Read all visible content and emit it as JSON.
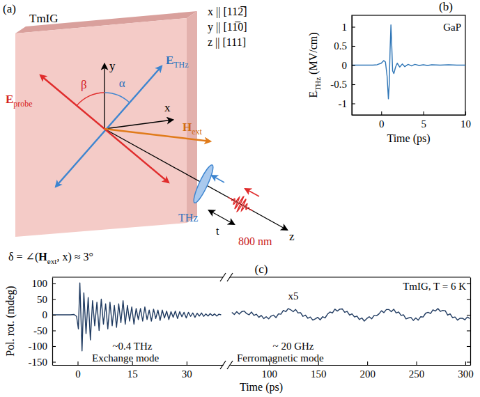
{
  "diagram": {
    "panel_label": "(a)",
    "sample": "TmIG",
    "orientations": [
      "x || [112̅]",
      "y || [11̅0]",
      "z || [111]"
    ],
    "axis_labels": {
      "x": "x",
      "y": "y",
      "z": "z"
    },
    "vectors": {
      "E_THz": [
        {
          "text": "E",
          "bold": true
        },
        {
          "text": "THz",
          "sub": true
        }
      ],
      "E_probe": [
        {
          "text": "E",
          "bold": true
        },
        {
          "text": "probe",
          "sub": true
        }
      ],
      "H_ext": [
        {
          "text": "H",
          "bold": true
        },
        {
          "text": "ext",
          "sub": true
        }
      ]
    },
    "angles": {
      "beta": "β",
      "alpha": "α"
    },
    "pulses": {
      "thz": "THz",
      "delay": "t",
      "probe": "800 nm"
    },
    "caption": [
      {
        "text": "δ = ∠("
      },
      {
        "text": "H",
        "bold": true
      },
      {
        "text": "ext",
        "sub": true
      },
      {
        "text": ", x) ≈ 3°"
      }
    ]
  },
  "chart_data": [
    {
      "type": "line",
      "title": "(b)",
      "annotations": [
        "GaP"
      ],
      "xlabel": "Time (ps)",
      "ylabel": [
        {
          "text": "E"
        },
        {
          "text": "THz",
          "sub": true
        },
        {
          "text": " (MV/cm)"
        }
      ],
      "color": "#2e75b6",
      "x": [
        -3.5,
        -2,
        -1,
        -0.5,
        0,
        0.3,
        0.5,
        0.7,
        0.85,
        0.95,
        1.05,
        1.15,
        1.25,
        1.35,
        1.5,
        1.7,
        1.9,
        2.2,
        2.5,
        2.8,
        3.2,
        3.6,
        4,
        4.5,
        5,
        5.5,
        6,
        7,
        8,
        9,
        10
      ],
      "values": [
        0,
        0,
        0,
        0.01,
        0.05,
        0.12,
        0.08,
        -0.3,
        -0.88,
        -0.5,
        0.4,
        1.05,
        0.5,
        -0.15,
        -0.22,
        -0.05,
        0.05,
        -0.05,
        0.03,
        -0.04,
        0.02,
        -0.02,
        0.02,
        -0.01,
        0.01,
        -0.01,
        0.01,
        0,
        0.01,
        0,
        0
      ],
      "xlim": [
        -3.5,
        10
      ],
      "xticks": [
        0,
        5,
        10
      ],
      "ylim": [
        -1.3,
        1.3
      ],
      "yticks": [
        -1,
        -0.5,
        0,
        0.5,
        1
      ]
    },
    {
      "type": "line",
      "title": "(c)",
      "annotations": [
        "~0.4 THz",
        "Exchange mode"
      ],
      "xlabel": "Time (ps)",
      "ylabel": "Pol. rot. (mdeg)",
      "color": "#1f3a60",
      "x": [
        -7,
        -2,
        -1,
        -0.3,
        0.2,
        0.6,
        1.2,
        1.7,
        2.3,
        2.9,
        3.5,
        4.1,
        4.7,
        5.3,
        5.9,
        6.5,
        7.1,
        7.7,
        8.3,
        8.9,
        9.5,
        10.1,
        10.7,
        11.3,
        11.9,
        12.5,
        13.1,
        13.7,
        14.3,
        14.9,
        15.5,
        16.1,
        16.7,
        17.3,
        17.9,
        18.5,
        19.1,
        19.7,
        20.3,
        20.9,
        21.5,
        22.1,
        22.7,
        23.3,
        23.9,
        24.5,
        25.1,
        25.7,
        26.3,
        26.9,
        27.5,
        28.1,
        28.7,
        29.3,
        29.9,
        30.5,
        31.1,
        31.7,
        32.3,
        32.9,
        33.5,
        34.1,
        34.7,
        35.3,
        35.9,
        36.5,
        37.1,
        37.7,
        38.3,
        38.9,
        39.5
      ],
      "values": [
        0,
        0,
        1,
        -5,
        -45,
        102,
        -115,
        70,
        -60,
        55,
        -80,
        45,
        -35,
        40,
        -50,
        50,
        -30,
        35,
        -45,
        40,
        -35,
        30,
        -40,
        35,
        -25,
        45,
        -30,
        30,
        -20,
        25,
        -30,
        20,
        -15,
        20,
        -20,
        25,
        -15,
        15,
        -20,
        18,
        -12,
        15,
        -18,
        15,
        -10,
        12,
        -15,
        10,
        -8,
        12,
        -12,
        10,
        -6,
        8,
        -10,
        8,
        -5,
        6,
        -8,
        5,
        -4,
        6,
        -5,
        3,
        -4,
        4,
        -3,
        3,
        -4,
        2,
        0
      ],
      "xlim": [
        -7,
        40
      ],
      "xticks": [
        0,
        15,
        30
      ],
      "ylim": [
        -160,
        120
      ],
      "yticks": [
        100,
        50,
        0,
        -50,
        -100,
        -150
      ]
    },
    {
      "type": "line",
      "annotations": [
        "x5",
        "~ 20 GHz",
        "Ferromagnetic mode",
        "TmIG, T = 6 K"
      ],
      "color": "#1f3a60",
      "tick_labels": "x",
      "x": [
        62,
        64.5,
        67,
        69.5,
        72,
        74.5,
        77,
        79.5,
        82,
        84.5,
        87,
        89.5,
        92,
        94.5,
        97,
        99.5,
        102,
        104.5,
        107,
        109.5,
        112,
        114.5,
        117,
        119.5,
        122,
        124.5,
        127,
        129.5,
        132,
        134.5,
        137,
        139.5,
        142,
        144.5,
        147,
        149.5,
        152,
        154.5,
        157,
        159.5,
        162,
        164.5,
        167,
        169.5,
        172,
        174.5,
        177,
        179.5,
        182,
        184.5,
        187,
        189.5,
        192,
        194.5,
        197,
        199.5,
        202,
        204.5,
        207,
        209.5,
        212,
        214.5,
        217,
        219.5,
        222,
        224.5,
        227,
        229.5,
        232,
        234.5,
        237,
        239.5,
        242,
        244.5,
        247,
        249.5,
        252,
        254.5,
        257,
        259.5,
        262,
        264.5,
        267,
        269.5,
        272,
        274.5,
        277,
        279.5,
        282,
        284.5,
        287,
        289.5,
        292,
        294.5,
        297,
        299.5,
        302,
        304.5
      ],
      "values": [
        8,
        1,
        10,
        2,
        10,
        12,
        4,
        0,
        9,
        -2,
        2,
        -8,
        -2,
        -12,
        -6,
        -13,
        -4,
        -1,
        -9,
        3,
        2,
        14,
        10,
        20,
        16,
        10,
        17,
        6,
        7,
        -5,
        -1,
        -11,
        -7,
        -17,
        -13,
        -8,
        -16,
        -6,
        -10,
        2,
        9,
        6,
        18,
        12,
        18,
        19,
        8,
        11,
        -1,
        3,
        -7,
        -4,
        -15,
        -10,
        -20,
        -12,
        -6,
        -13,
        -2,
        -3,
        3,
        13,
        7,
        17,
        17,
        10,
        18,
        6,
        9,
        -2,
        0,
        -13,
        -10,
        -8,
        -18,
        -10,
        -17,
        -6,
        -7,
        5,
        8,
        4,
        16,
        12,
        20,
        11,
        14,
        13,
        -1,
        3,
        -9,
        -7,
        -17,
        -11,
        -11,
        -16,
        -7,
        -12
      ],
      "xlim": [
        60,
        305
      ],
      "xticks": [
        100,
        150,
        200,
        250,
        300
      ],
      "ylim": [
        -160,
        120
      ],
      "yticks": [
        100,
        50,
        0,
        -50,
        -100,
        -150
      ]
    }
  ]
}
